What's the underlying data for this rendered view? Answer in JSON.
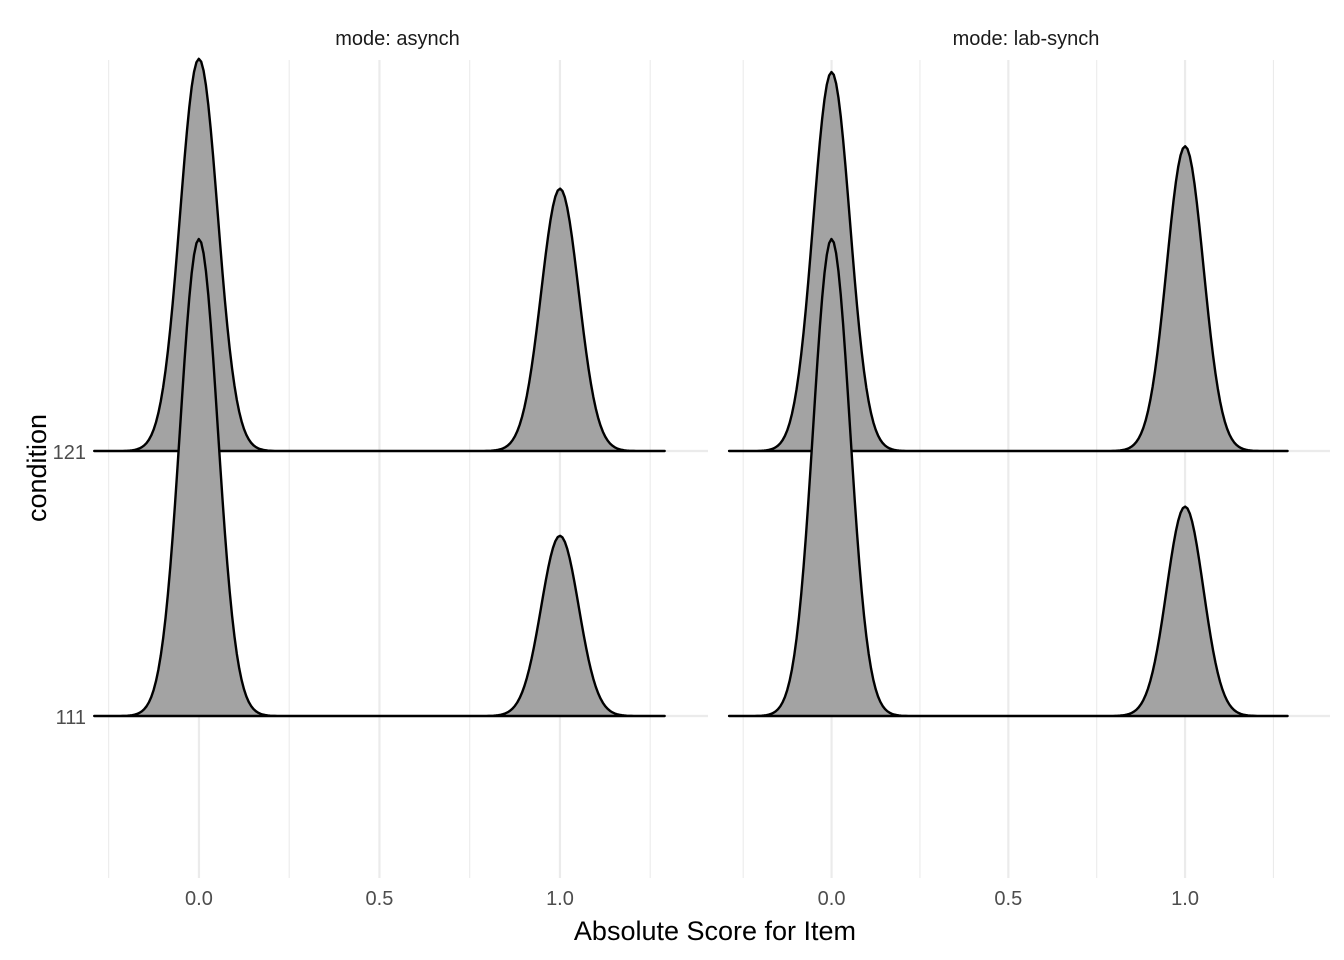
{
  "chart_data": {
    "type": "area",
    "subtype": "ridgeline",
    "xlabel": "Absolute Score for Item",
    "ylabel": "condition",
    "x_ticks": [
      "0.0",
      "0.5",
      "1.0"
    ],
    "xlim": [
      -0.31,
      1.41
    ],
    "y_categories": [
      "111",
      "121"
    ],
    "grid": true,
    "fill_color": "#a3a3a3",
    "line_color": "#000000",
    "panels": [
      {
        "title": "mode: asynch",
        "ridges": [
          {
            "condition": "111",
            "peaks": [
              {
                "x": 0.0,
                "height": 1.8
              },
              {
                "x": 1.0,
                "height": 0.68
              }
            ]
          },
          {
            "condition": "121",
            "peaks": [
              {
                "x": 0.0,
                "height": 1.48
              },
              {
                "x": 1.0,
                "height": 0.99
              }
            ]
          }
        ]
      },
      {
        "title": "mode: lab-synch",
        "ridges": [
          {
            "condition": "111",
            "peaks": [
              {
                "x": 0.0,
                "height": 1.8
              },
              {
                "x": 1.0,
                "height": 0.79
              }
            ]
          },
          {
            "condition": "121",
            "peaks": [
              {
                "x": 0.0,
                "height": 1.43
              },
              {
                "x": 1.0,
                "height": 1.15
              }
            ]
          }
        ]
      }
    ]
  }
}
